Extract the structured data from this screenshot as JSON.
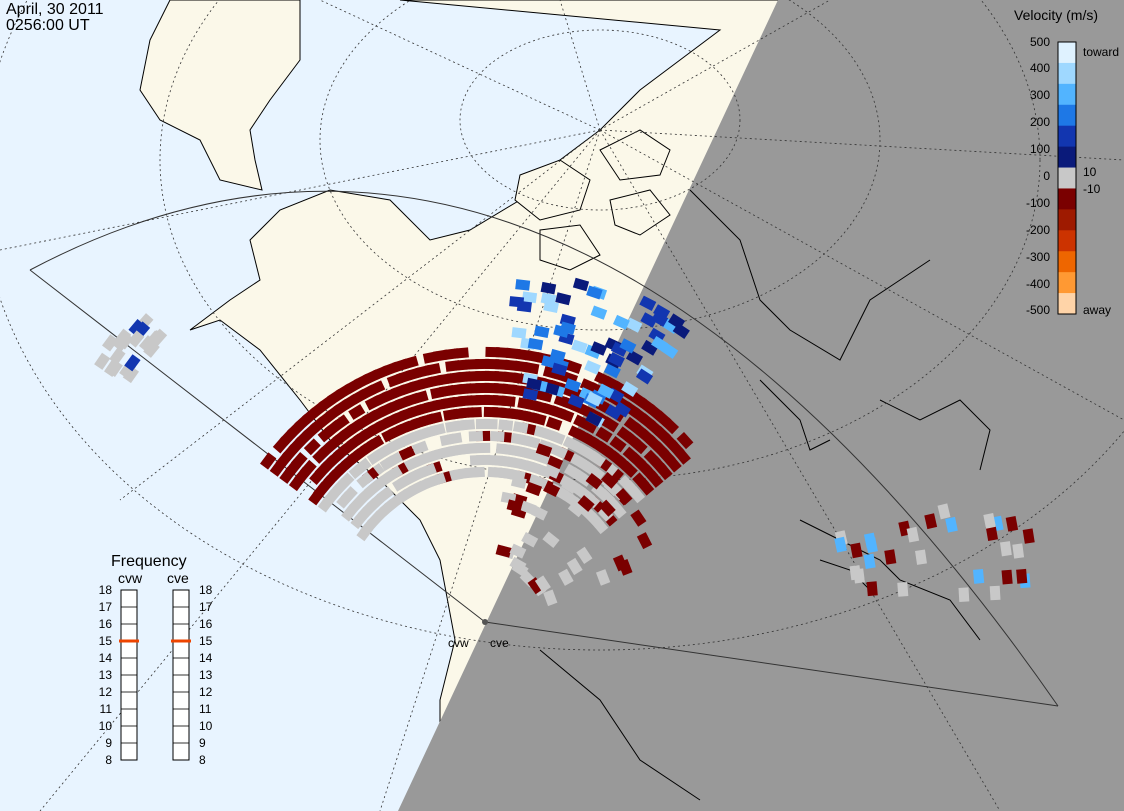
{
  "header": {
    "date": "April, 30 2011",
    "time": "0256:00 UT"
  },
  "velocity_scale": {
    "title": "Velocity (m/s)",
    "ticks": [
      "500",
      "400",
      "300",
      "200",
      "100",
      "10",
      "0",
      "-10",
      "-100",
      "-200",
      "-300",
      "-400",
      "-500"
    ],
    "toward_label": "toward",
    "away_label": "away",
    "colors": [
      "#dff2ff",
      "#9fd8ff",
      "#52b4ff",
      "#1e78e6",
      "#1236b0",
      "#0a1a7a",
      "#c8c8c8",
      "#7a0000",
      "#9e1a00",
      "#cc3300",
      "#ee6600",
      "#ff9933",
      "#ffd4a8"
    ]
  },
  "frequency_panel": {
    "title": "Frequency",
    "radars": [
      {
        "name": "cvw",
        "selected_mhz": 15
      },
      {
        "name": "cve",
        "selected_mhz": 15
      }
    ],
    "ticks": [
      "18",
      "17",
      "16",
      "15",
      "14",
      "13",
      "12",
      "11",
      "10",
      "9",
      "8"
    ]
  },
  "radar_sites": [
    {
      "name": "cvw"
    },
    {
      "name": "cve"
    }
  ],
  "map_colors": {
    "ocean": "#e8f4ff",
    "land": "#fbf8e9",
    "night": "#999999",
    "scatter_ground": "#c8c8c8",
    "scatter_away": "#7a0000"
  }
}
